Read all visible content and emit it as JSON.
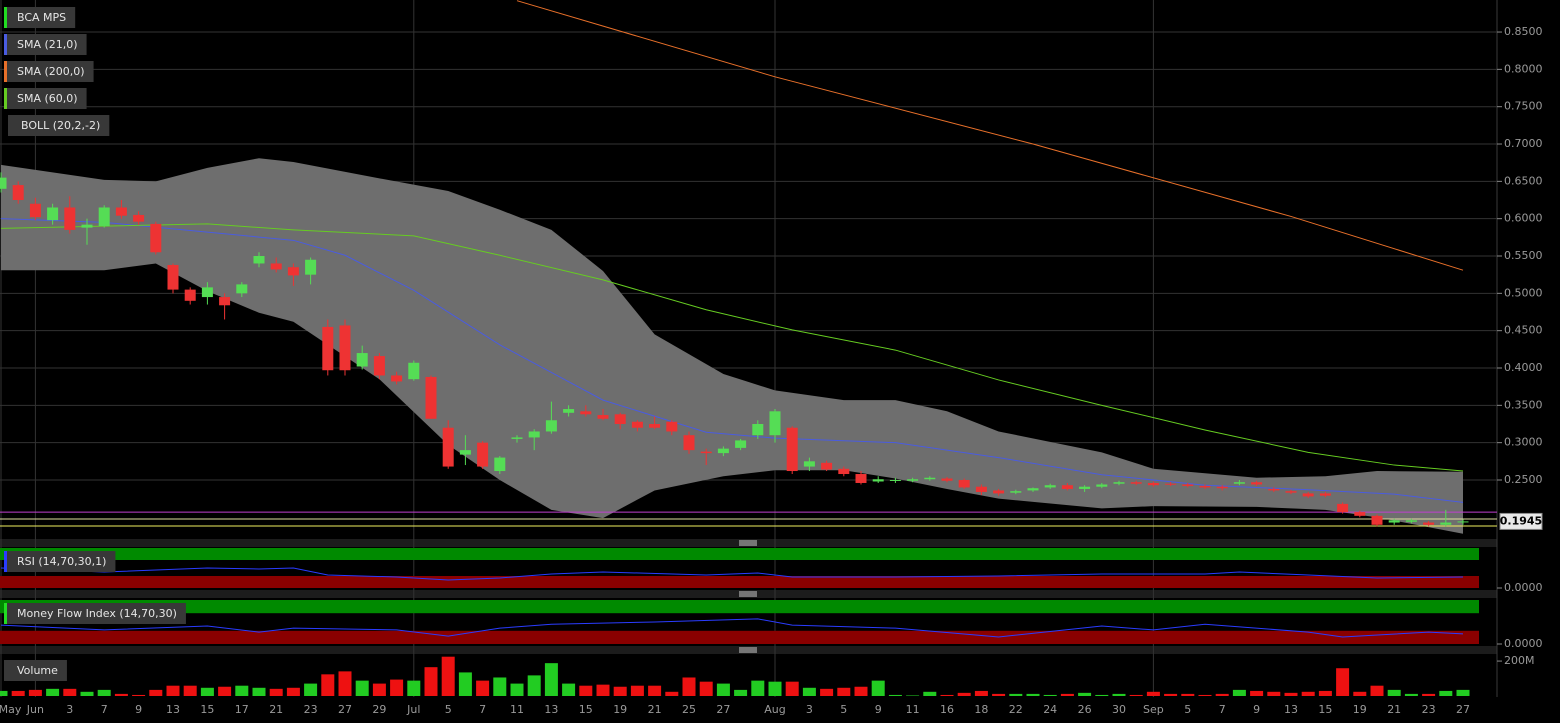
{
  "chart_data": [
    {
      "type": "candlestick",
      "ylim": [
        0.1723,
        0.8929
      ],
      "yticks": [
        {
          "value": 0.25,
          "label": "0.2500"
        },
        {
          "value": 0.3,
          "label": "0.3000"
        },
        {
          "value": 0.35,
          "label": "0.3500"
        },
        {
          "value": 0.4,
          "label": "0.4000"
        },
        {
          "value": 0.45,
          "label": "0.4500"
        },
        {
          "value": 0.5,
          "label": "0.5000"
        },
        {
          "value": 0.55,
          "label": "0.5500"
        },
        {
          "value": 0.6,
          "label": "0.6000"
        },
        {
          "value": 0.65,
          "label": "0.6500"
        },
        {
          "value": 0.7,
          "label": "0.7000"
        },
        {
          "value": 0.75,
          "label": "0.7500"
        },
        {
          "value": 0.8,
          "label": "0.8000"
        },
        {
          "value": 0.85,
          "label": "0.8500"
        }
      ],
      "grid": true,
      "series": [
        {
          "name": "BCA MPS",
          "color": "#22dd22",
          "up_color": "#55dd55",
          "down_color": "#ee3333",
          "open": [
            0.64,
            0.645,
            0.62,
            0.598,
            0.615,
            0.588,
            0.59,
            0.615,
            0.605,
            0.593,
            0.538,
            0.505,
            0.495,
            0.495,
            0.5,
            0.54,
            0.54,
            0.535,
            0.525,
            0.455,
            0.457,
            0.402,
            0.416,
            0.39,
            0.385,
            0.388,
            0.32,
            0.284,
            0.3,
            0.262,
            0.305,
            0.307,
            0.315,
            0.34,
            0.342,
            0.337,
            0.338,
            0.328,
            0.325,
            0.328,
            0.31,
            0.288,
            0.286,
            0.293,
            0.31,
            0.31,
            0.32,
            0.268,
            0.273,
            0.265,
            0.258,
            0.248,
            0.249,
            0.249,
            0.251,
            0.252,
            0.25,
            0.241,
            0.236,
            0.233,
            0.236,
            0.24,
            0.243,
            0.238,
            0.241,
            0.245,
            0.247,
            0.246,
            0.245,
            0.244,
            0.242,
            0.241,
            0.245,
            0.247,
            0.238,
            0.235,
            0.232,
            0.232,
            0.218,
            0.207,
            0.202,
            0.193,
            0.194,
            0.193,
            0.19,
            0.194
          ],
          "high": [
            0.662,
            0.65,
            0.628,
            0.62,
            0.63,
            0.6,
            0.618,
            0.625,
            0.61,
            0.596,
            0.54,
            0.508,
            0.515,
            0.5,
            0.515,
            0.555,
            0.548,
            0.54,
            0.548,
            0.465,
            0.465,
            0.43,
            0.42,
            0.395,
            0.41,
            0.39,
            0.33,
            0.31,
            0.302,
            0.282,
            0.31,
            0.318,
            0.355,
            0.35,
            0.35,
            0.345,
            0.34,
            0.33,
            0.335,
            0.33,
            0.315,
            0.292,
            0.295,
            0.305,
            0.33,
            0.345,
            0.322,
            0.28,
            0.276,
            0.268,
            0.262,
            0.255,
            0.253,
            0.253,
            0.255,
            0.254,
            0.252,
            0.244,
            0.238,
            0.237,
            0.24,
            0.245,
            0.246,
            0.243,
            0.246,
            0.249,
            0.249,
            0.248,
            0.247,
            0.246,
            0.244,
            0.243,
            0.25,
            0.249,
            0.24,
            0.237,
            0.234,
            0.234,
            0.22,
            0.209,
            0.204,
            0.198,
            0.198,
            0.195,
            0.21,
            0.197
          ],
          "low": [
            0.635,
            0.62,
            0.598,
            0.592,
            0.58,
            0.565,
            0.588,
            0.6,
            0.592,
            0.552,
            0.5,
            0.485,
            0.485,
            0.465,
            0.495,
            0.535,
            0.528,
            0.51,
            0.512,
            0.39,
            0.39,
            0.398,
            0.385,
            0.378,
            0.383,
            0.332,
            0.265,
            0.27,
            0.265,
            0.258,
            0.3,
            0.29,
            0.312,
            0.335,
            0.335,
            0.33,
            0.318,
            0.315,
            0.318,
            0.31,
            0.285,
            0.27,
            0.282,
            0.29,
            0.305,
            0.3,
            0.258,
            0.262,
            0.262,
            0.255,
            0.244,
            0.246,
            0.246,
            0.247,
            0.249,
            0.247,
            0.238,
            0.23,
            0.229,
            0.231,
            0.234,
            0.238,
            0.236,
            0.234,
            0.239,
            0.243,
            0.243,
            0.241,
            0.242,
            0.24,
            0.238,
            0.236,
            0.243,
            0.242,
            0.234,
            0.231,
            0.226,
            0.227,
            0.205,
            0.2,
            0.188,
            0.19,
            0.192,
            0.188,
            0.188,
            0.19
          ],
          "close": [
            0.655,
            0.625,
            0.602,
            0.615,
            0.585,
            0.592,
            0.615,
            0.604,
            0.596,
            0.555,
            0.505,
            0.49,
            0.508,
            0.484,
            0.512,
            0.55,
            0.532,
            0.524,
            0.545,
            0.397,
            0.397,
            0.42,
            0.39,
            0.382,
            0.407,
            0.332,
            0.268,
            0.29,
            0.268,
            0.28,
            0.307,
            0.315,
            0.33,
            0.345,
            0.338,
            0.332,
            0.325,
            0.32,
            0.32,
            0.315,
            0.29,
            0.286,
            0.292,
            0.303,
            0.325,
            0.342,
            0.262,
            0.275,
            0.264,
            0.258,
            0.246,
            0.251,
            0.25,
            0.251,
            0.253,
            0.249,
            0.24,
            0.234,
            0.232,
            0.235,
            0.239,
            0.243,
            0.238,
            0.241,
            0.244,
            0.247,
            0.245,
            0.243,
            0.244,
            0.242,
            0.24,
            0.239,
            0.247,
            0.244,
            0.236,
            0.233,
            0.228,
            0.229,
            0.207,
            0.202,
            0.19,
            0.196,
            0.196,
            0.19,
            0.193,
            0.1945
          ]
        }
      ],
      "overlays": [
        {
          "name": "SMA (21,0)",
          "color": "#4a5ce0",
          "x": [
            0,
            6,
            12,
            17,
            20,
            24,
            29,
            35,
            41,
            45,
            52,
            58,
            64,
            70,
            76,
            81,
            85
          ],
          "values": [
            0.6,
            0.595,
            0.582,
            0.571,
            0.551,
            0.504,
            0.431,
            0.357,
            0.314,
            0.306,
            0.3,
            0.28,
            0.257,
            0.243,
            0.237,
            0.231,
            0.22
          ]
        },
        {
          "name": "SMA (200,0)",
          "color": "#e8702a",
          "x": [
            30,
            45,
            60,
            75,
            85
          ],
          "values": [
            0.892,
            0.79,
            0.7,
            0.603,
            0.531
          ]
        },
        {
          "name": "SMA (60,0)",
          "color": "#66cc22",
          "x": [
            0,
            12,
            17,
            24,
            29,
            35,
            41,
            46,
            52,
            58,
            64,
            70,
            76,
            81,
            85
          ],
          "values": [
            0.587,
            0.593,
            0.585,
            0.577,
            0.551,
            0.518,
            0.478,
            0.451,
            0.424,
            0.384,
            0.35,
            0.317,
            0.287,
            0.27,
            0.262
          ]
        }
      ],
      "band": {
        "name": "BOLL (20,2,-2)",
        "color": "#6e6e6e",
        "x": [
          0,
          6,
          9,
          12,
          15,
          17,
          22,
          26,
          29,
          32,
          35,
          38,
          42,
          45,
          49,
          52,
          55,
          58,
          64,
          67,
          73,
          77,
          80,
          85
        ],
        "upper": [
          0.672,
          0.652,
          0.65,
          0.668,
          0.681,
          0.676,
          0.654,
          0.637,
          0.612,
          0.585,
          0.53,
          0.445,
          0.392,
          0.37,
          0.357,
          0.357,
          0.342,
          0.315,
          0.287,
          0.265,
          0.253,
          0.255,
          0.262,
          0.261
        ],
        "lower": [
          0.531,
          0.531,
          0.54,
          0.503,
          0.474,
          0.462,
          0.385,
          0.297,
          0.25,
          0.21,
          0.199,
          0.236,
          0.255,
          0.263,
          0.263,
          0.252,
          0.238,
          0.225,
          0.212,
          0.215,
          0.214,
          0.21,
          0.2,
          0.178
        ]
      },
      "hlines": [
        {
          "value": 0.207,
          "color": "#c040d0"
        },
        {
          "value": 0.1978,
          "color": "#e0e0a0"
        },
        {
          "value": 0.1884,
          "color": "#f0f060"
        }
      ],
      "last_price": 0.1945
    },
    {
      "type": "line",
      "ylim": [
        0,
        100
      ],
      "yticks": [
        {
          "value": 0,
          "label": "0.0000"
        }
      ],
      "zones": [
        {
          "from": 70,
          "to": 100,
          "color": "#008a00"
        },
        {
          "from": 0,
          "to": 30,
          "color": "#8a0000"
        }
      ],
      "series": [
        {
          "name": "RSI (14,70,30,1)",
          "color": "#2a3cff",
          "x": [
            0,
            6,
            12,
            15,
            17,
            19,
            23,
            26,
            29,
            32,
            35,
            41,
            44,
            46,
            52,
            58,
            64,
            70,
            72,
            76,
            80,
            85
          ],
          "values": [
            50,
            40,
            50,
            47.5,
            50,
            32.5,
            27.5,
            20,
            25,
            35,
            40,
            32.5,
            37.5,
            27.5,
            27.5,
            30,
            35,
            35,
            40,
            32.5,
            25,
            27.5
          ]
        }
      ]
    },
    {
      "type": "line",
      "ylim": [
        0,
        100
      ],
      "yticks": [
        {
          "value": 0,
          "label": "0.0000"
        }
      ],
      "zones": [
        {
          "from": 70,
          "to": 100,
          "color": "#008a00"
        },
        {
          "from": 0,
          "to": 30,
          "color": "#8a0000"
        }
      ],
      "series": [
        {
          "name": "Money Flow Index (14,70,30)",
          "color": "#2a3cff",
          "legend_color": "#22dd22",
          "x": [
            0,
            6,
            12,
            15,
            17,
            23,
            26,
            29,
            32,
            38,
            44,
            46,
            52,
            58,
            64,
            67,
            70,
            76,
            78,
            83,
            85
          ],
          "values": [
            43,
            32,
            41,
            27,
            36,
            32,
            18,
            36,
            45,
            50,
            57,
            43,
            36,
            16,
            41,
            32,
            45,
            27,
            16,
            27,
            23
          ]
        }
      ]
    },
    {
      "type": "bar",
      "ylim": [
        0,
        229000000
      ],
      "yticks": [
        {
          "value": 200000000,
          "label": "200M"
        }
      ],
      "up_color": "#22cc22",
      "down_color": "#ee1111",
      "categories": [
        "May",
        null,
        "Jun",
        null,
        "3",
        null,
        "7",
        null,
        "9",
        null,
        "13",
        null,
        "15",
        null,
        "17",
        null,
        "21",
        null,
        "23",
        null,
        "27",
        null,
        "29",
        null,
        "Jul",
        null,
        "5",
        null,
        "7",
        null,
        "11",
        null,
        "13",
        null,
        "15",
        null,
        "19",
        null,
        "21",
        null,
        "25",
        null,
        "27",
        null,
        null,
        "Aug",
        null,
        "3",
        null,
        "5",
        null,
        "9",
        null,
        "11",
        null,
        "16",
        null,
        "18",
        null,
        "22",
        null,
        "24",
        null,
        "26",
        null,
        "30",
        null,
        "Sep",
        null,
        "5",
        null,
        "7",
        null,
        "9",
        null,
        "13",
        null,
        "15",
        null,
        "19",
        null,
        "21",
        null,
        "23",
        null,
        "27"
      ],
      "series": [
        {
          "name": "Volume",
          "values": [
            29000000,
            29000000,
            35000000,
            41000000,
            41000000,
            24000000,
            35000000,
            12000000,
            6000000,
            35000000,
            59000000,
            59000000,
            47000000,
            53000000,
            59000000,
            47000000,
            41000000,
            47000000,
            71000000,
            124000000,
            141000000,
            88000000,
            71000000,
            94000000,
            88000000,
            165000000,
            225000000,
            135000000,
            88000000,
            106000000,
            71000000,
            118000000,
            188000000,
            71000000,
            59000000,
            65000000,
            53000000,
            59000000,
            59000000,
            24000000,
            106000000,
            82000000,
            71000000,
            35000000,
            88000000,
            82000000,
            82000000,
            47000000,
            41000000,
            47000000,
            53000000,
            88000000,
            6000000,
            3000000,
            24000000,
            6000000,
            18000000,
            29000000,
            12000000,
            12000000,
            12000000,
            6000000,
            12000000,
            18000000,
            6000000,
            12000000,
            6000000,
            24000000,
            12000000,
            12000000,
            6000000,
            12000000,
            35000000,
            29000000,
            24000000,
            18000000,
            24000000,
            29000000,
            159000000,
            24000000,
            59000000,
            35000000,
            12000000,
            12000000,
            29000000,
            35000000
          ]
        }
      ]
    }
  ]
}
